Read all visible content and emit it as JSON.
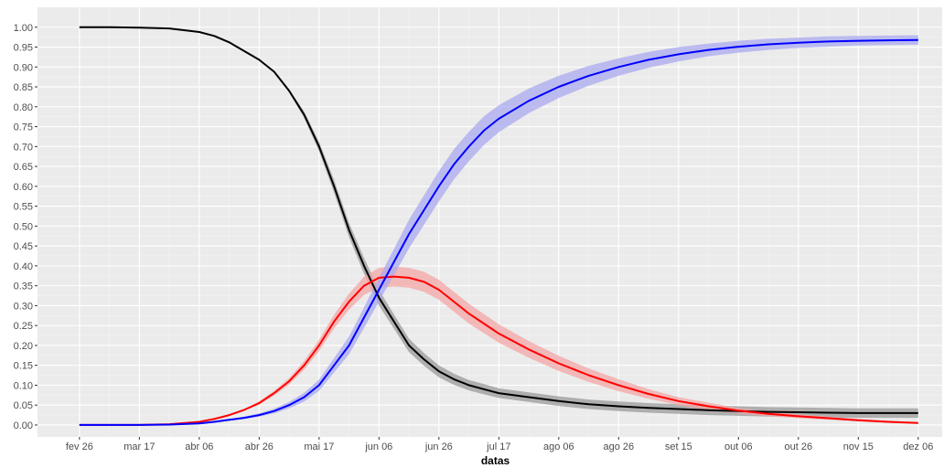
{
  "chart_data": {
    "type": "line",
    "title": "",
    "xlabel": "datas",
    "ylabel": "",
    "grid": true,
    "legend": "none",
    "background": "#EBEBEB",
    "x_tick_labels": [
      "fev 26",
      "mar 17",
      "abr 06",
      "abr 26",
      "mai 17",
      "jun 06",
      "jun 26",
      "jul 17",
      "ago 06",
      "ago 26",
      "set 15",
      "out 06",
      "out 26",
      "nov 15",
      "dez 06"
    ],
    "x_tick_positions": [
      0,
      20,
      40,
      60,
      80,
      100,
      120,
      140,
      160,
      180,
      200,
      220,
      240,
      260,
      280
    ],
    "x_range": [
      -14,
      288
    ],
    "y_ticks": [
      0,
      0.05,
      0.1,
      0.15,
      0.2,
      0.25,
      0.3,
      0.35,
      0.4,
      0.45,
      0.5,
      0.55,
      0.6,
      0.65,
      0.7,
      0.75,
      0.8,
      0.85,
      0.9,
      0.95,
      1.0
    ],
    "y_tick_labels": [
      "0.00",
      "0.05",
      "0.10",
      "0.15",
      "0.20",
      "0.25",
      "0.30",
      "0.35",
      "0.40",
      "0.45",
      "0.50",
      "0.55",
      "0.60",
      "0.65",
      "0.70",
      "0.75",
      "0.80",
      "0.85",
      "0.90",
      "0.95",
      "1.00"
    ],
    "ylim": [
      -0.03,
      1.05
    ],
    "x_values": [
      0,
      10,
      20,
      30,
      40,
      45,
      50,
      55,
      60,
      65,
      70,
      75,
      80,
      85,
      90,
      95,
      100,
      105,
      110,
      115,
      120,
      125,
      130,
      135,
      140,
      150,
      160,
      170,
      180,
      190,
      200,
      210,
      220,
      230,
      240,
      250,
      260,
      270,
      280
    ],
    "series": [
      {
        "color": "#000000",
        "band_color": "#999999",
        "values": [
          1.0,
          1.0,
          0.999,
          0.997,
          0.988,
          0.978,
          0.962,
          0.94,
          0.918,
          0.888,
          0.84,
          0.78,
          0.7,
          0.6,
          0.49,
          0.4,
          0.32,
          0.26,
          0.2,
          0.165,
          0.135,
          0.115,
          0.1,
          0.09,
          0.08,
          0.07,
          0.06,
          0.052,
          0.047,
          0.043,
          0.04,
          0.037,
          0.035,
          0.033,
          0.032,
          0.031,
          0.03,
          0.03,
          0.03
        ],
        "band_half_width": [
          0,
          0,
          0,
          0,
          0,
          0,
          0,
          0,
          0,
          0.002,
          0.004,
          0.008,
          0.012,
          0.016,
          0.018,
          0.02,
          0.02,
          0.018,
          0.017,
          0.016,
          0.015,
          0.014,
          0.013,
          0.013,
          0.012,
          0.012,
          0.012,
          0.012,
          0.012,
          0.012,
          0.012,
          0.012,
          0.012,
          0.012,
          0.012,
          0.012,
          0.012,
          0.012,
          0.012
        ]
      },
      {
        "color": "#FF0000",
        "band_color": "#F4A6A6",
        "values": [
          0.0,
          0.0,
          0.0,
          0.002,
          0.008,
          0.015,
          0.025,
          0.038,
          0.055,
          0.08,
          0.11,
          0.15,
          0.2,
          0.26,
          0.31,
          0.35,
          0.37,
          0.373,
          0.37,
          0.36,
          0.34,
          0.31,
          0.28,
          0.255,
          0.23,
          0.19,
          0.155,
          0.125,
          0.1,
          0.078,
          0.06,
          0.047,
          0.036,
          0.028,
          0.022,
          0.017,
          0.012,
          0.008,
          0.005
        ],
        "band_half_width": [
          0,
          0,
          0,
          0,
          0,
          0.001,
          0.001,
          0.002,
          0.004,
          0.006,
          0.008,
          0.011,
          0.014,
          0.017,
          0.02,
          0.023,
          0.025,
          0.025,
          0.025,
          0.025,
          0.025,
          0.025,
          0.025,
          0.024,
          0.023,
          0.021,
          0.019,
          0.017,
          0.015,
          0.012,
          0.01,
          0.009,
          0.007,
          0.006,
          0.005,
          0.004,
          0.003,
          0.003,
          0.002
        ]
      },
      {
        "color": "#0000FF",
        "band_color": "#A9A9F0",
        "values": [
          0.0,
          0.0,
          0.0,
          0.001,
          0.004,
          0.008,
          0.013,
          0.018,
          0.025,
          0.035,
          0.05,
          0.07,
          0.1,
          0.15,
          0.2,
          0.27,
          0.34,
          0.41,
          0.48,
          0.54,
          0.6,
          0.655,
          0.7,
          0.74,
          0.77,
          0.815,
          0.85,
          0.878,
          0.9,
          0.918,
          0.932,
          0.943,
          0.951,
          0.957,
          0.961,
          0.964,
          0.966,
          0.967,
          0.968
        ],
        "band_half_width": [
          0,
          0,
          0,
          0,
          0,
          0.001,
          0.002,
          0.003,
          0.004,
          0.006,
          0.008,
          0.011,
          0.014,
          0.018,
          0.022,
          0.026,
          0.03,
          0.033,
          0.036,
          0.037,
          0.038,
          0.038,
          0.037,
          0.036,
          0.034,
          0.031,
          0.028,
          0.025,
          0.022,
          0.02,
          0.018,
          0.016,
          0.015,
          0.014,
          0.013,
          0.013,
          0.012,
          0.012,
          0.012
        ]
      }
    ]
  }
}
